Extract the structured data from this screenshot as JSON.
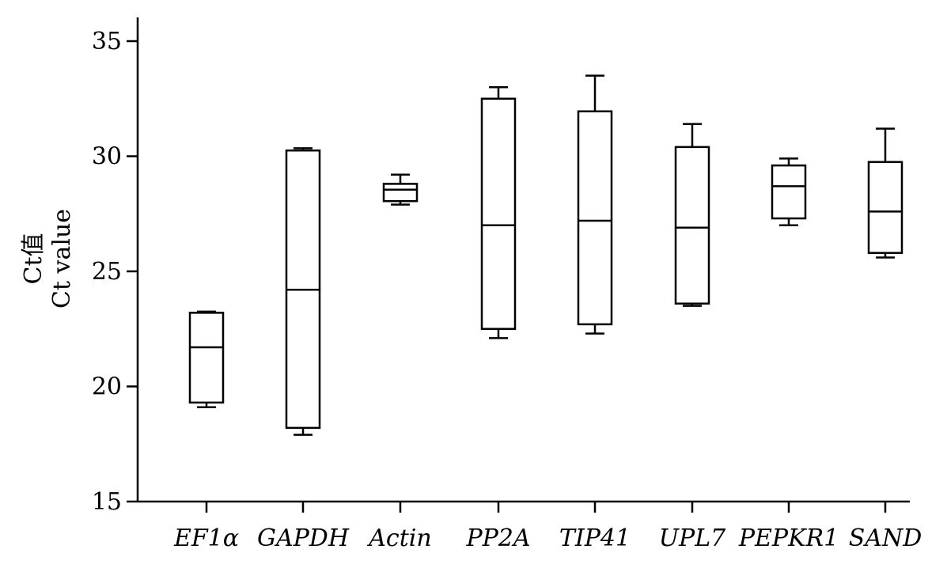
{
  "chart_data": {
    "type": "box",
    "ylabel_line1": "Ct值",
    "ylabel_line2": "Ct value",
    "xlabel": "",
    "ylim": [
      15,
      36
    ],
    "yticks": [
      15,
      20,
      25,
      30,
      35
    ],
    "grid": false,
    "categories": [
      "EF1α",
      "GAPDH",
      "Actin",
      "PP2A",
      "TIP41",
      "UPL7",
      "PEPKR1",
      "SAND"
    ],
    "boxes": [
      {
        "category": "EF1α",
        "min": 19.1,
        "q1": 19.3,
        "median": 21.7,
        "q3": 23.2,
        "max": 23.25
      },
      {
        "category": "GAPDH",
        "min": 17.9,
        "q1": 18.2,
        "median": 24.2,
        "q3": 30.25,
        "max": 30.35
      },
      {
        "category": "Actin",
        "min": 27.9,
        "q1": 28.05,
        "median": 28.55,
        "q3": 28.8,
        "max": 29.2
      },
      {
        "category": "PP2A",
        "min": 22.1,
        "q1": 22.5,
        "median": 27.0,
        "q3": 32.5,
        "max": 33.0
      },
      {
        "category": "TIP41",
        "min": 22.3,
        "q1": 22.7,
        "median": 27.2,
        "q3": 31.95,
        "max": 33.5
      },
      {
        "category": "UPL7",
        "min": 23.5,
        "q1": 23.6,
        "median": 26.9,
        "q3": 30.4,
        "max": 31.4
      },
      {
        "category": "PEPKR1",
        "min": 27.0,
        "q1": 27.3,
        "median": 28.7,
        "q3": 29.6,
        "max": 29.9
      },
      {
        "category": "SAND",
        "min": 25.6,
        "q1": 25.8,
        "median": 27.6,
        "q3": 29.75,
        "max": 31.2
      }
    ]
  }
}
